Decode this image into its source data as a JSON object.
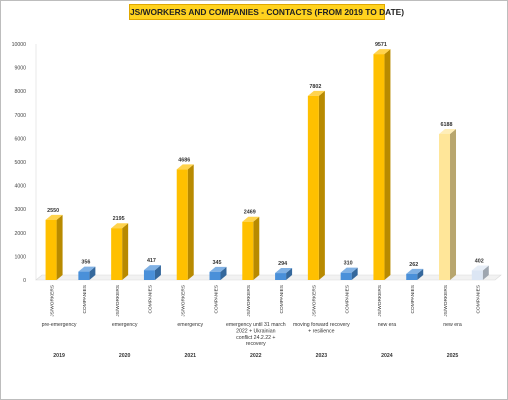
{
  "chart_data": {
    "type": "bar",
    "title": "JS/WORKERS AND COMPANIES - CONTACTS (FROM 2019 TO DATE)",
    "ylim": [
      0,
      10000
    ],
    "yticks": [
      0,
      1000,
      2000,
      3000,
      4000,
      5000,
      6000,
      7000,
      8000,
      9000,
      10000
    ],
    "grid": false,
    "groups": [
      {
        "year": "2019",
        "phase": "pre-emergency",
        "bars": [
          {
            "label": "JS/WORKERS",
            "value": 2550,
            "value_label": "2550",
            "color": "#ffc000"
          },
          {
            "label": "COMPANIES",
            "value": 356,
            "value_label": "356",
            "color": "#4a90d9"
          }
        ]
      },
      {
        "year": "2020",
        "phase": "emergency",
        "bars": [
          {
            "label": "JS/WORKERS",
            "value": 2195,
            "value_label": "2195",
            "color": "#ffc000"
          },
          {
            "label": "COMPANIES",
            "value": 417,
            "value_label": "417",
            "color": "#4a90d9"
          }
        ]
      },
      {
        "year": "2021",
        "phase": "emergency",
        "bars": [
          {
            "label": "JS/WORKERS",
            "value": 4686,
            "value_label": "4686",
            "color": "#ffc000"
          },
          {
            "label": "COMPANIES",
            "value": 345,
            "value_label": "345",
            "color": "#4a90d9"
          }
        ]
      },
      {
        "year": "2022",
        "phase": "emergency until 31 march 2022 + Ukrainian conflict 24.2.22 + recovery",
        "bars": [
          {
            "label": "JS/WORKERS",
            "value": 2469,
            "value_label": "2469",
            "color": "#ffc000"
          },
          {
            "label": "COMPANIES",
            "value": 294,
            "value_label": "294",
            "color": "#4a90d9"
          }
        ]
      },
      {
        "year": "2023",
        "phase": "moving forward recovery + resilience",
        "bars": [
          {
            "label": "JS/WORKERS",
            "value": 7802,
            "value_label": "7802",
            "color": "#ffc000"
          },
          {
            "label": "COMPANIES",
            "value": 310,
            "value_label": "310",
            "color": "#4a90d9"
          }
        ]
      },
      {
        "year": "2024",
        "phase": "new era",
        "bars": [
          {
            "label": "JS/WORKERS",
            "value": 9571,
            "value_label": "9571",
            "color": "#ffc000"
          },
          {
            "label": "COMPANIES",
            "value": 262,
            "value_label": "262",
            "color": "#4a90d9"
          }
        ]
      },
      {
        "year": "2025",
        "phase": "new era",
        "bars": [
          {
            "label": "JS/WORKERS",
            "value": 6188,
            "value_label": "6188",
            "color": "#ffe699"
          },
          {
            "label": "COMPANIES",
            "value": 402,
            "value_label": "402",
            "color": "#dce6f4"
          }
        ]
      }
    ]
  }
}
